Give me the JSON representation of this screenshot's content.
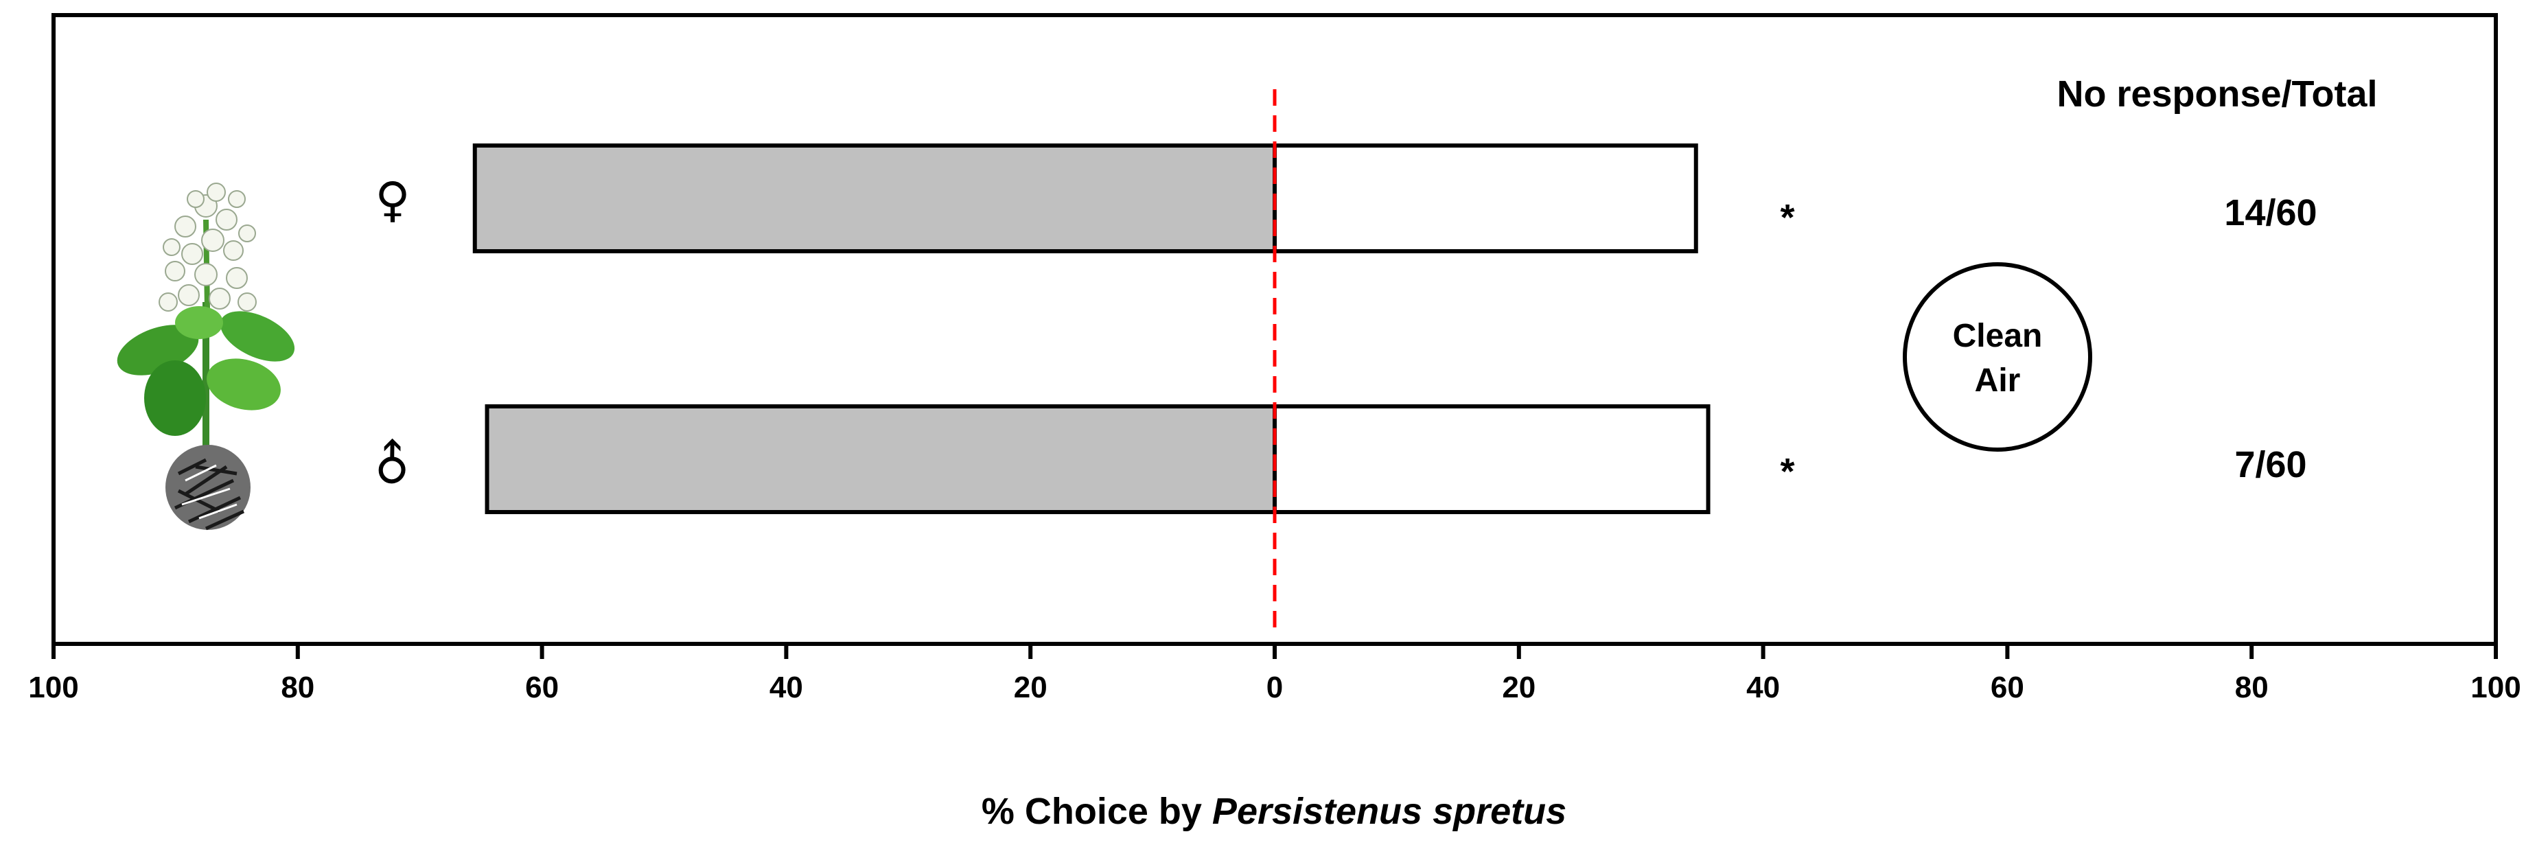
{
  "chart_data": {
    "type": "bar",
    "orientation": "horizontal-diverging",
    "categories": [
      "♀",
      "♂"
    ],
    "series": [
      {
        "name": "",
        "side": "left",
        "color": "#c0c0c0",
        "values": [
          65.5,
          64.5
        ]
      },
      {
        "name": "",
        "side": "right",
        "color": "#ffffff",
        "values": [
          34.5,
          35.5
        ]
      }
    ],
    "significance": [
      "*",
      "*"
    ],
    "no_response_header": "No response/Total",
    "no_response": [
      "14/60",
      "7/60"
    ],
    "right_label_lines": [
      "Clean",
      "Air"
    ],
    "xlabel_prefix": "% Choice by ",
    "xlabel_species": "Persistenus spretus",
    "xticks_left": [
      "100",
      "80",
      "60",
      "40",
      "20"
    ],
    "xtick_center": "0",
    "xticks_right": [
      "20",
      "40",
      "60",
      "80",
      "100"
    ],
    "xlim": [
      -100,
      100
    ],
    "center_line_color": "#ff0000",
    "grid": false,
    "left_stimulus_icon": "flowering-plant-icon"
  }
}
